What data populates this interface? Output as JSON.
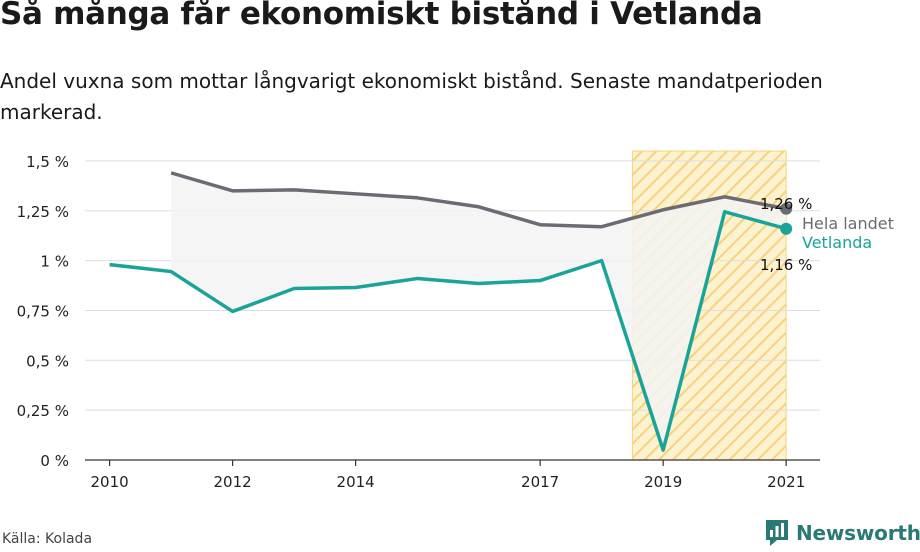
{
  "title": "Så många får ekonomiskt bistånd i Vetlanda",
  "subtitle": "Andel vuxna som mottar långvarigt ekonomiskt bistånd. Senaste mandatperioden markerad.",
  "source": "Källa: Kolada",
  "brand": "Newsworthy",
  "colors": {
    "national": "#6b6b73",
    "municipality": "#1aa398",
    "highlight_fill": "#fdf2d0",
    "highlight_stroke": "#f6d37a",
    "band_fill": "#f3f3f3",
    "grid": "#dddddd"
  },
  "chart_data": {
    "type": "line",
    "x_ticks": [
      2010,
      2012,
      2014,
      2017,
      2019,
      2021
    ],
    "y_ticks": [
      0,
      0.25,
      0.5,
      0.75,
      1,
      1.25,
      1.5
    ],
    "y_tick_labels": [
      "0 %",
      "0,25 %",
      "0,5 %",
      "0,75 %",
      "1 %",
      "1,25 %",
      "1,5 %"
    ],
    "xlim": [
      2009.6,
      2021.55
    ],
    "ylim": [
      0,
      1.65
    ],
    "highlight_period": [
      2018.5,
      2021
    ],
    "series": [
      {
        "name": "Hela landet",
        "end_label": "1,26 %",
        "x": [
          2011,
          2012,
          2013,
          2014,
          2015,
          2016,
          2017,
          2018,
          2019,
          2020,
          2021
        ],
        "y": [
          1.44,
          1.35,
          1.355,
          1.335,
          1.315,
          1.27,
          1.18,
          1.17,
          1.255,
          1.32,
          1.26
        ]
      },
      {
        "name": "Vetlanda",
        "end_label": "1,16 %",
        "x": [
          2010,
          2011,
          2012,
          2013,
          2014,
          2015,
          2016,
          2017,
          2018,
          2019,
          2020,
          2021
        ],
        "y": [
          0.98,
          0.945,
          0.745,
          0.86,
          0.865,
          0.91,
          0.885,
          0.9,
          1.0,
          0.05,
          1.245,
          1.16
        ]
      }
    ]
  }
}
